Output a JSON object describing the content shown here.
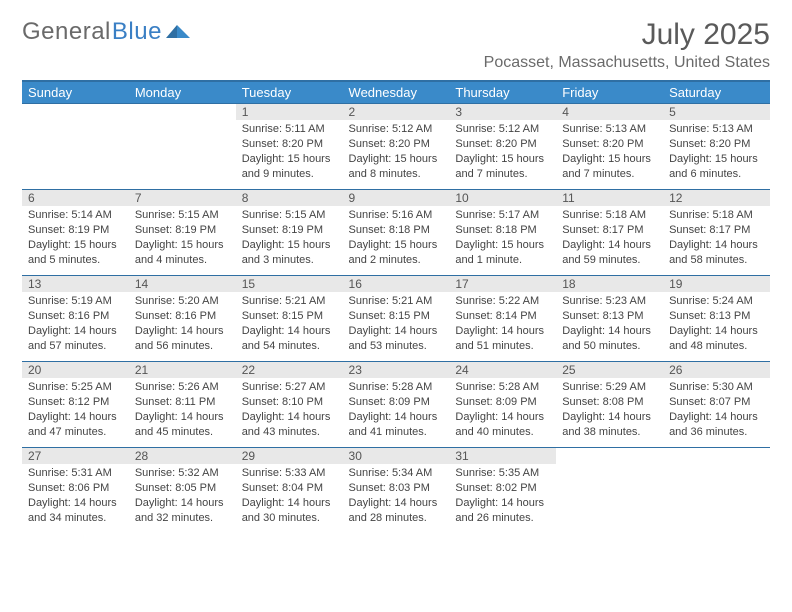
{
  "brand": {
    "part1": "General",
    "part2": "Blue"
  },
  "title": "July 2025",
  "location": "Pocasset, Massachusetts, United States",
  "colors": {
    "header_bg": "#3a8ac9",
    "header_border": "#2f6fa3",
    "daynum_bg": "#e8e8e8",
    "text": "#444444",
    "brand_gray": "#6a6a6a",
    "brand_blue": "#3a7fc4"
  },
  "day_headers": [
    "Sunday",
    "Monday",
    "Tuesday",
    "Wednesday",
    "Thursday",
    "Friday",
    "Saturday"
  ],
  "weeks": [
    [
      null,
      null,
      {
        "n": "1",
        "sr": "5:11 AM",
        "ss": "8:20 PM",
        "d": "15 hours and 9 minutes."
      },
      {
        "n": "2",
        "sr": "5:12 AM",
        "ss": "8:20 PM",
        "d": "15 hours and 8 minutes."
      },
      {
        "n": "3",
        "sr": "5:12 AM",
        "ss": "8:20 PM",
        "d": "15 hours and 7 minutes."
      },
      {
        "n": "4",
        "sr": "5:13 AM",
        "ss": "8:20 PM",
        "d": "15 hours and 7 minutes."
      },
      {
        "n": "5",
        "sr": "5:13 AM",
        "ss": "8:20 PM",
        "d": "15 hours and 6 minutes."
      }
    ],
    [
      {
        "n": "6",
        "sr": "5:14 AM",
        "ss": "8:19 PM",
        "d": "15 hours and 5 minutes."
      },
      {
        "n": "7",
        "sr": "5:15 AM",
        "ss": "8:19 PM",
        "d": "15 hours and 4 minutes."
      },
      {
        "n": "8",
        "sr": "5:15 AM",
        "ss": "8:19 PM",
        "d": "15 hours and 3 minutes."
      },
      {
        "n": "9",
        "sr": "5:16 AM",
        "ss": "8:18 PM",
        "d": "15 hours and 2 minutes."
      },
      {
        "n": "10",
        "sr": "5:17 AM",
        "ss": "8:18 PM",
        "d": "15 hours and 1 minute."
      },
      {
        "n": "11",
        "sr": "5:18 AM",
        "ss": "8:17 PM",
        "d": "14 hours and 59 minutes."
      },
      {
        "n": "12",
        "sr": "5:18 AM",
        "ss": "8:17 PM",
        "d": "14 hours and 58 minutes."
      }
    ],
    [
      {
        "n": "13",
        "sr": "5:19 AM",
        "ss": "8:16 PM",
        "d": "14 hours and 57 minutes."
      },
      {
        "n": "14",
        "sr": "5:20 AM",
        "ss": "8:16 PM",
        "d": "14 hours and 56 minutes."
      },
      {
        "n": "15",
        "sr": "5:21 AM",
        "ss": "8:15 PM",
        "d": "14 hours and 54 minutes."
      },
      {
        "n": "16",
        "sr": "5:21 AM",
        "ss": "8:15 PM",
        "d": "14 hours and 53 minutes."
      },
      {
        "n": "17",
        "sr": "5:22 AM",
        "ss": "8:14 PM",
        "d": "14 hours and 51 minutes."
      },
      {
        "n": "18",
        "sr": "5:23 AM",
        "ss": "8:13 PM",
        "d": "14 hours and 50 minutes."
      },
      {
        "n": "19",
        "sr": "5:24 AM",
        "ss": "8:13 PM",
        "d": "14 hours and 48 minutes."
      }
    ],
    [
      {
        "n": "20",
        "sr": "5:25 AM",
        "ss": "8:12 PM",
        "d": "14 hours and 47 minutes."
      },
      {
        "n": "21",
        "sr": "5:26 AM",
        "ss": "8:11 PM",
        "d": "14 hours and 45 minutes."
      },
      {
        "n": "22",
        "sr": "5:27 AM",
        "ss": "8:10 PM",
        "d": "14 hours and 43 minutes."
      },
      {
        "n": "23",
        "sr": "5:28 AM",
        "ss": "8:09 PM",
        "d": "14 hours and 41 minutes."
      },
      {
        "n": "24",
        "sr": "5:28 AM",
        "ss": "8:09 PM",
        "d": "14 hours and 40 minutes."
      },
      {
        "n": "25",
        "sr": "5:29 AM",
        "ss": "8:08 PM",
        "d": "14 hours and 38 minutes."
      },
      {
        "n": "26",
        "sr": "5:30 AM",
        "ss": "8:07 PM",
        "d": "14 hours and 36 minutes."
      }
    ],
    [
      {
        "n": "27",
        "sr": "5:31 AM",
        "ss": "8:06 PM",
        "d": "14 hours and 34 minutes."
      },
      {
        "n": "28",
        "sr": "5:32 AM",
        "ss": "8:05 PM",
        "d": "14 hours and 32 minutes."
      },
      {
        "n": "29",
        "sr": "5:33 AM",
        "ss": "8:04 PM",
        "d": "14 hours and 30 minutes."
      },
      {
        "n": "30",
        "sr": "5:34 AM",
        "ss": "8:03 PM",
        "d": "14 hours and 28 minutes."
      },
      {
        "n": "31",
        "sr": "5:35 AM",
        "ss": "8:02 PM",
        "d": "14 hours and 26 minutes."
      },
      null,
      null
    ]
  ],
  "labels": {
    "sunrise": "Sunrise: ",
    "sunset": "Sunset: ",
    "daylight": "Daylight: "
  }
}
